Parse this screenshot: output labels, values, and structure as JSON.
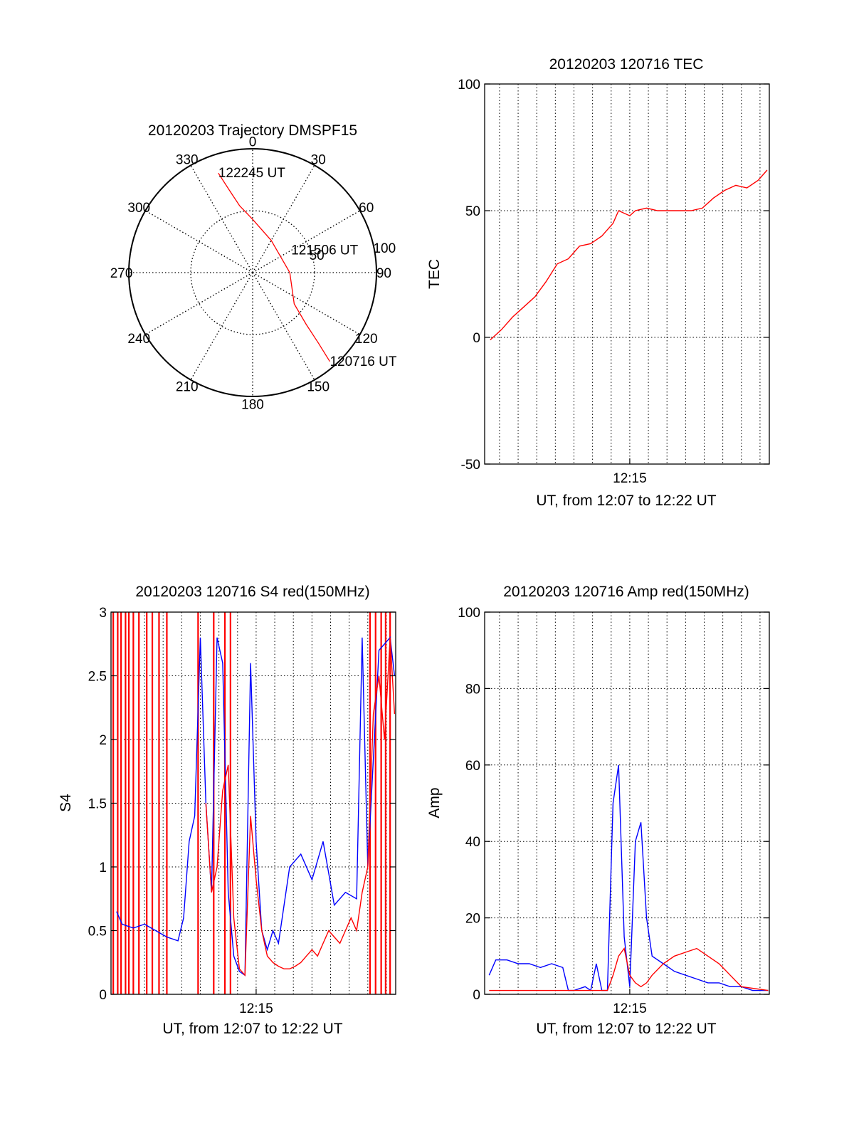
{
  "chart_data": [
    {
      "type": "polar",
      "title": "20120203 Trajectory DMSPF15",
      "angle_labels": [
        "0",
        "30",
        "60",
        "90",
        "120",
        "150",
        "180",
        "210",
        "240",
        "270",
        "300",
        "330"
      ],
      "radius_labels": [
        "50",
        "100"
      ],
      "rlim": [
        0,
        100
      ],
      "grid": true,
      "series": [
        {
          "color": "#ff0000",
          "points": [
            {
              "az": 341,
              "r": 85
            },
            {
              "az": 344,
              "r": 70
            },
            {
              "az": 349,
              "r": 55
            },
            {
              "az": 360,
              "r": 43
            },
            {
              "az": 30,
              "r": 30
            },
            {
              "az": 90,
              "r": 30
            },
            {
              "az": 127,
              "r": 42
            },
            {
              "az": 134,
              "r": 60
            },
            {
              "az": 137,
              "r": 78
            },
            {
              "az": 139,
              "r": 95
            }
          ]
        }
      ],
      "annotations": [
        {
          "text": "122245 UT",
          "az": 341,
          "r": 85
        },
        {
          "text": "121506 UT",
          "az": 60,
          "r": 36
        },
        {
          "text": "120716 UT",
          "az": 139,
          "r": 95
        }
      ]
    },
    {
      "type": "line",
      "title": "20120203 120716 TEC",
      "xlabel": "UT, from 12:07 to 12:22 UT",
      "ylabel": "TEC",
      "x_tick_labels": [
        {
          "x": 12.25,
          "label": "12:15"
        }
      ],
      "xlim": [
        12.12,
        12.375
      ],
      "ylim": [
        -50,
        100
      ],
      "yticks": [
        -50,
        0,
        50,
        100
      ],
      "grid": true,
      "series": [
        {
          "color": "#ff0000",
          "x": [
            12.125,
            12.135,
            12.145,
            12.155,
            12.165,
            12.175,
            12.185,
            12.195,
            12.205,
            12.215,
            12.225,
            12.235,
            12.24,
            12.245,
            12.25,
            12.255,
            12.265,
            12.275,
            12.285,
            12.295,
            12.305,
            12.315,
            12.325,
            12.335,
            12.345,
            12.355,
            12.365,
            12.373
          ],
          "y": [
            -1,
            3,
            8,
            12,
            16,
            22,
            29,
            31,
            36,
            37,
            40,
            45,
            50,
            49,
            48,
            50,
            51,
            50,
            50,
            50,
            50,
            51,
            55,
            58,
            60,
            59,
            62,
            66
          ]
        }
      ]
    },
    {
      "type": "line",
      "title": "20120203 120716 S4 red(150MHz)",
      "xlabel": "UT, from 12:07 to 12:22 UT",
      "ylabel": "S4",
      "x_tick_labels": [
        {
          "x": 12.25,
          "label": "12:15"
        }
      ],
      "xlim": [
        12.12,
        12.375
      ],
      "ylim": [
        0,
        3
      ],
      "yticks": [
        0,
        0.5,
        1,
        1.5,
        2,
        2.5,
        3
      ],
      "ytick_labels": [
        "0",
        "0.5",
        "1",
        "1.5",
        "2",
        "2.5",
        "3"
      ],
      "grid": true,
      "series": [
        {
          "color": "#0000ff",
          "x": [
            12.125,
            12.13,
            12.14,
            12.15,
            12.16,
            12.17,
            12.18,
            12.185,
            12.19,
            12.195,
            12.2,
            12.205,
            12.21,
            12.215,
            12.22,
            12.225,
            12.23,
            12.235,
            12.24,
            12.245,
            12.25,
            12.255,
            12.26,
            12.265,
            12.27,
            12.28,
            12.29,
            12.3,
            12.31,
            12.315,
            12.32,
            12.33,
            12.34,
            12.345,
            12.35,
            12.36,
            12.37,
            12.374
          ],
          "y": [
            0.65,
            0.55,
            0.52,
            0.55,
            0.5,
            0.45,
            0.42,
            0.6,
            1.2,
            1.4,
            2.8,
            1.5,
            0.8,
            2.8,
            2.6,
            0.8,
            0.3,
            0.18,
            0.15,
            2.6,
            1.2,
            0.5,
            0.35,
            0.5,
            0.4,
            1.0,
            1.1,
            0.9,
            1.2,
            0.95,
            0.7,
            0.8,
            0.75,
            2.8,
            1.0,
            2.7,
            2.8,
            2.5
          ]
        },
        {
          "color": "#ff0000",
          "x": [
            12.205,
            12.21,
            12.215,
            12.22,
            12.225,
            12.23,
            12.235,
            12.24,
            12.245,
            12.25,
            12.255,
            12.26,
            12.265,
            12.27,
            12.275,
            12.28,
            12.285,
            12.29,
            12.295,
            12.3,
            12.305,
            12.31,
            12.315,
            12.32,
            12.325,
            12.33,
            12.335,
            12.34,
            12.345,
            12.35,
            12.355,
            12.36,
            12.365,
            12.37,
            12.374
          ],
          "y": [
            1.5,
            0.8,
            1.0,
            1.6,
            1.8,
            0.6,
            0.2,
            0.15,
            1.4,
            0.9,
            0.5,
            0.3,
            0.25,
            0.22,
            0.2,
            0.2,
            0.22,
            0.25,
            0.3,
            0.35,
            0.3,
            0.4,
            0.5,
            0.45,
            0.4,
            0.5,
            0.6,
            0.5,
            0.8,
            1.0,
            2.2,
            2.5,
            2.0,
            2.8,
            2.2
          ]
        }
      ],
      "red_spikes_x": [
        12.122,
        12.126,
        12.129,
        12.133,
        12.136,
        12.14,
        12.145,
        12.152,
        12.157,
        12.163,
        12.17,
        12.198,
        12.212,
        12.222,
        12.227,
        12.352,
        12.357,
        12.362,
        12.366,
        12.37
      ]
    },
    {
      "type": "line",
      "title": "20120203 120716 Amp red(150MHz)",
      "xlabel": "UT, from 12:07 to 12:22 UT",
      "ylabel": "Amp",
      "x_tick_labels": [
        {
          "x": 12.25,
          "label": "12:15"
        }
      ],
      "xlim": [
        12.12,
        12.375
      ],
      "ylim": [
        0,
        100
      ],
      "yticks": [
        0,
        20,
        40,
        60,
        80,
        100
      ],
      "grid": true,
      "series": [
        {
          "color": "#0000ff",
          "x": [
            12.124,
            12.13,
            12.14,
            12.15,
            12.16,
            12.17,
            12.18,
            12.19,
            12.195,
            12.2,
            12.21,
            12.215,
            12.22,
            12.225,
            12.23,
            12.235,
            12.24,
            12.245,
            12.25,
            12.255,
            12.26,
            12.265,
            12.27,
            12.28,
            12.29,
            12.3,
            12.31,
            12.32,
            12.33,
            12.34,
            12.35,
            12.36,
            12.374
          ],
          "y": [
            5,
            9,
            9,
            8,
            8,
            7,
            8,
            7,
            1,
            1,
            2,
            1,
            8,
            1,
            1,
            50,
            60,
            15,
            2,
            40,
            45,
            20,
            10,
            8,
            6,
            5,
            4,
            3,
            3,
            2,
            2,
            1,
            1
          ]
        },
        {
          "color": "#ff0000",
          "x": [
            12.124,
            12.15,
            12.2,
            12.23,
            12.235,
            12.24,
            12.245,
            12.25,
            12.255,
            12.26,
            12.265,
            12.27,
            12.28,
            12.29,
            12.3,
            12.31,
            12.32,
            12.33,
            12.34,
            12.35,
            12.374
          ],
          "y": [
            1,
            1,
            1,
            1,
            5,
            10,
            12,
            5,
            3,
            2,
            3,
            5,
            8,
            10,
            11,
            12,
            10,
            8,
            5,
            2,
            1
          ]
        }
      ]
    }
  ]
}
